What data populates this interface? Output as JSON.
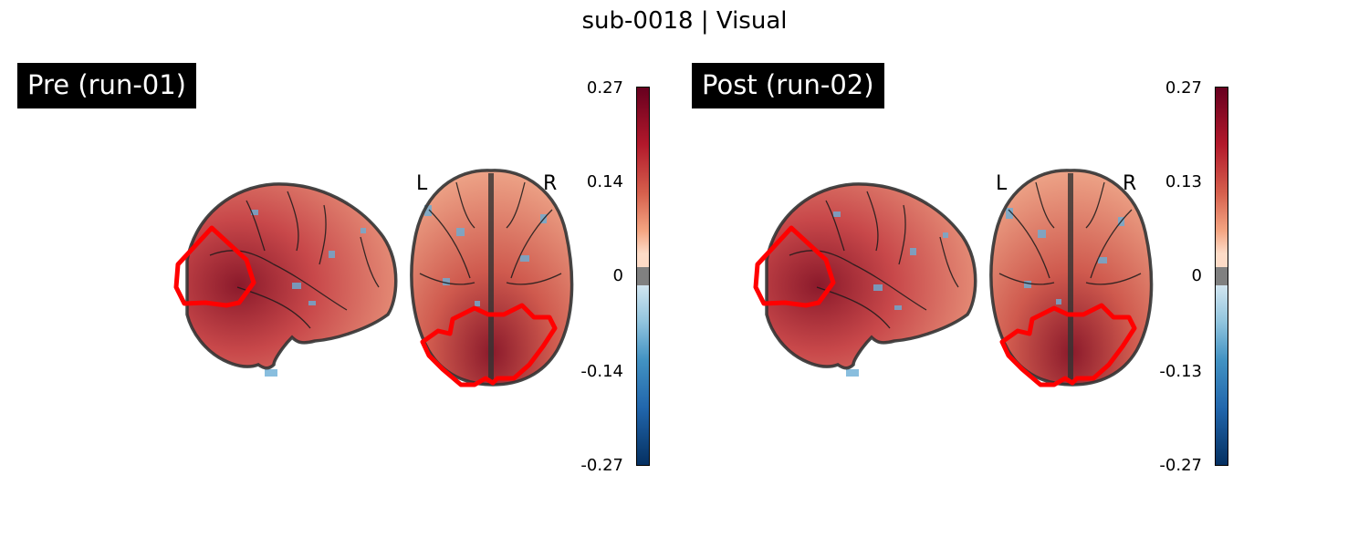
{
  "figure": {
    "title": "sub-0018 | Visual"
  },
  "panels": [
    {
      "label": "Pre (run-01)",
      "orientation": {
        "left": "L",
        "right": "R"
      },
      "colorbar": {
        "ticks": [
          "0.27",
          "0.14",
          "0",
          "-0.14",
          "-0.27"
        ]
      }
    },
    {
      "label": "Post (run-02)",
      "orientation": {
        "left": "L",
        "right": "R"
      },
      "colorbar": {
        "ticks": [
          "0.27",
          "0.13",
          "0",
          "-0.13",
          "-0.27"
        ]
      }
    }
  ],
  "colors": {
    "roi_outline": "#ff0000",
    "brain_outline": "#333333",
    "positive_max": "#67001f",
    "negative_max": "#053061",
    "threshold_band": "#808080"
  }
}
